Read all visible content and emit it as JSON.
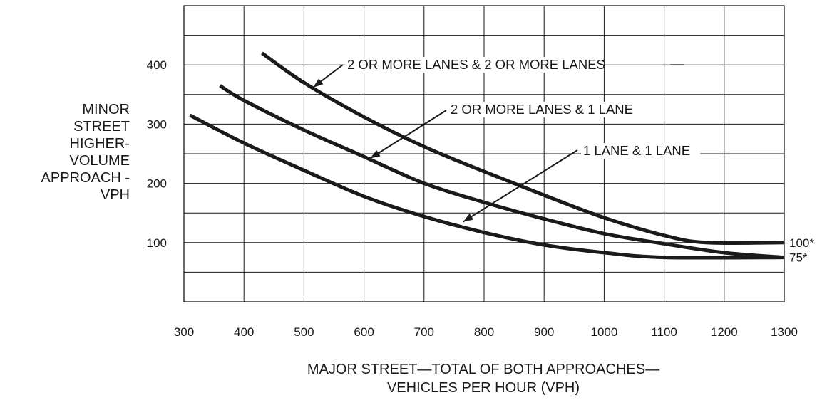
{
  "chart_data": {
    "type": "line",
    "title": "",
    "xlabel": [
      "MAJOR STREET—TOTAL OF BOTH APPROACHES—",
      "VEHICLES PER HOUR (VPH)"
    ],
    "ylabel": [
      "MINOR",
      "STREET",
      "HIGHER-",
      "VOLUME",
      "APPROACH -",
      "VPH"
    ],
    "xlim": [
      300,
      1300
    ],
    "ylim": [
      0,
      500
    ],
    "grid": true,
    "x_ticks": [
      300,
      400,
      500,
      600,
      700,
      800,
      900,
      1000,
      1100,
      1200,
      1300
    ],
    "x_tick_labels": [
      "300",
      "400",
      "500",
      "600",
      "700",
      "800",
      "900",
      "1000",
      "1100",
      "1200",
      "1300"
    ],
    "y_ticks": [
      100,
      200,
      300,
      400
    ],
    "y_tick_labels": [
      "100",
      "200",
      "300",
      "400"
    ],
    "series": [
      {
        "name": "2 OR MORE LANES & 2 OR MORE LANES",
        "x": [
          430,
          500,
          600,
          700,
          800,
          900,
          1000,
          1100,
          1170,
          1300
        ],
        "y": [
          420,
          370,
          312,
          262,
          220,
          180,
          142,
          112,
          100,
          100
        ]
      },
      {
        "name": "2 OR MORE LANES & 1 LANE",
        "x": [
          360,
          400,
          500,
          600,
          700,
          800,
          900,
          1000,
          1100,
          1200,
          1300
        ],
        "y": [
          365,
          340,
          290,
          245,
          200,
          168,
          140,
          115,
          98,
          83,
          75
        ]
      },
      {
        "name": "1 LANE & 1 LANE",
        "x": [
          310,
          400,
          500,
          600,
          700,
          800,
          900,
          1000,
          1100,
          1300
        ],
        "y": [
          315,
          268,
          222,
          178,
          144,
          117,
          96,
          83,
          75,
          75
        ]
      }
    ],
    "annotations": [
      {
        "text": "2 OR MORE LANES & 2 OR MORE LANES",
        "series": 0
      },
      {
        "text": "2 OR MORE LANES & 1 LANE",
        "series": 1
      },
      {
        "text": "1 LANE & 1 LANE",
        "series": 2
      },
      {
        "text": "100*",
        "value": 100
      },
      {
        "text": "75*",
        "value": 75
      }
    ]
  }
}
